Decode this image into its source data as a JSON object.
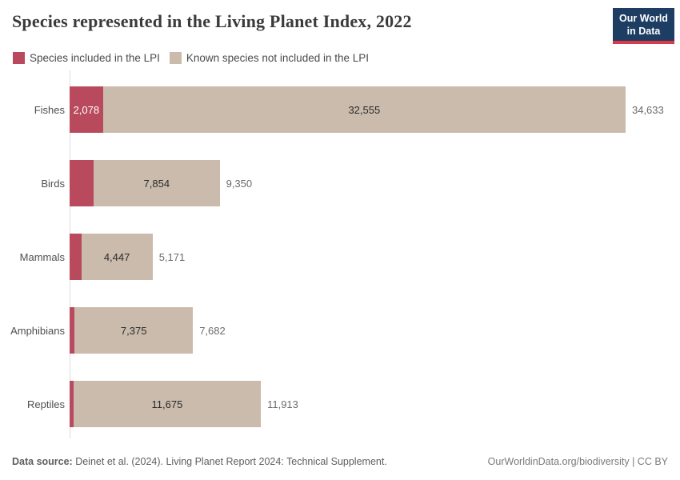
{
  "header": {
    "title": "Species represented in the Living Planet Index, 2022"
  },
  "logo": {
    "line1": "Our World",
    "line2": "in Data",
    "bg_color": "#1d3d63",
    "accent_color": "#d93a4a"
  },
  "legend": {
    "items": [
      {
        "key": "included",
        "label": "Species included in the LPI",
        "color": "#b94a5e"
      },
      {
        "key": "notincluded",
        "label": "Known species not included in the LPI",
        "color": "#cabbac"
      }
    ]
  },
  "chart_data": {
    "type": "bar",
    "orientation": "horizontal",
    "stacked": true,
    "title": "Species represented in the Living Planet Index, 2022",
    "categories": [
      "Fishes",
      "Birds",
      "Mammals",
      "Amphibians",
      "Reptiles"
    ],
    "series": [
      {
        "key": "included",
        "name": "Species included in the LPI",
        "color": "#b94a5e",
        "values": [
          2078,
          1496,
          724,
          307,
          238
        ]
      },
      {
        "key": "notincluded",
        "name": "Known species not included in the LPI",
        "color": "#cabbac",
        "values": [
          32555,
          7854,
          4447,
          7375,
          11675
        ]
      }
    ],
    "totals": [
      34633,
      9350,
      5171,
      7682,
      11913
    ],
    "segment_value_labels": {
      "included": [
        "2,078",
        "",
        "",
        "",
        ""
      ],
      "notincluded": [
        "32,555",
        "7,854",
        "4,447",
        "7,375",
        "11,675"
      ]
    },
    "total_labels": [
      "34,633",
      "9,350",
      "5,171",
      "7,682",
      "11,913"
    ],
    "xlim": [
      0,
      34633
    ],
    "grid": false,
    "legend_position": "top",
    "axis_line_color": "#dcdcdc"
  },
  "footer": {
    "source_label": "Data source:",
    "source_text": " Deinet et al. (2024). Living Planet Report 2024: Technical Supplement.",
    "link_text": "OurWorldinData.org/biodiversity | CC BY"
  }
}
